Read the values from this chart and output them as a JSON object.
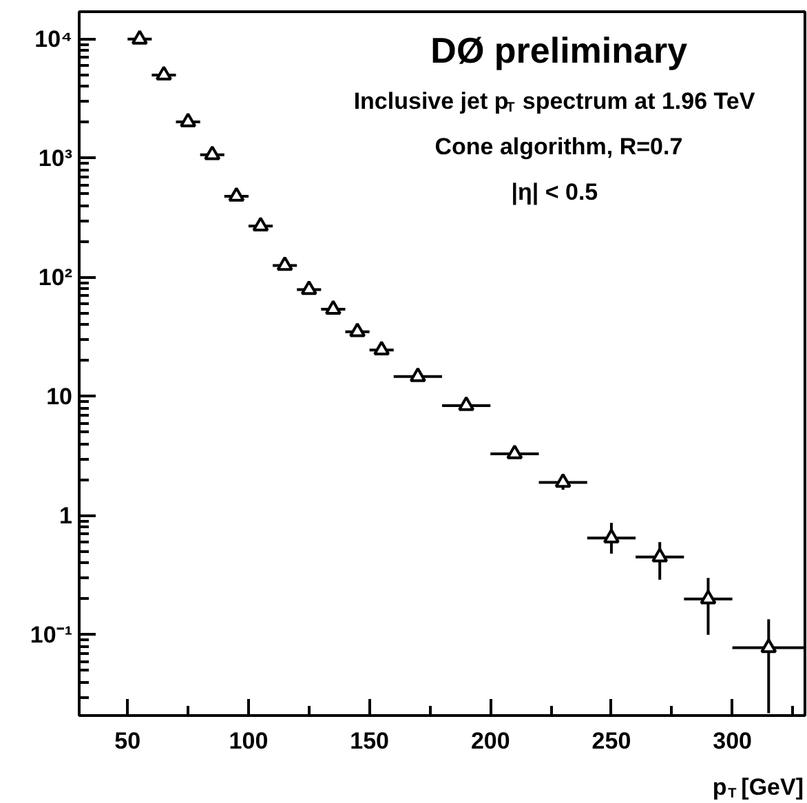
{
  "chart_data": {
    "type": "scatter",
    "title": "DØ preliminary",
    "annotations": [
      "Inclusive jet p$_{T}$ spectrum at 1.96 TeV",
      "Cone algorithm, R=0.7",
      "|η| < 0.5"
    ],
    "xlabel": "p$_{T}$ [GeV]",
    "x": [
      55,
      65,
      75,
      85,
      95,
      105,
      115,
      125,
      135,
      145,
      155,
      170,
      190,
      210,
      230,
      250,
      270,
      290,
      315
    ],
    "series": [
      {
        "color": "#000000",
        "values": [
          10000,
          5000,
          2020,
          1070,
          480,
          270,
          126,
          79,
          54,
          35,
          24.6,
          14.7,
          8.4,
          3.3,
          1.9,
          0.65,
          0.45,
          0.2,
          0.078
        ],
        "errors": [
          null,
          null,
          null,
          null,
          null,
          null,
          null,
          null,
          null,
          null,
          null,
          null,
          null,
          null,
          [
            1.65,
            2.2
          ],
          [
            0.48,
            0.87
          ],
          [
            0.29,
            0.6
          ],
          [
            0.1,
            0.3
          ],
          [
            0.022,
            0.135
          ]
        ],
        "xerrors": [
          5,
          5,
          5,
          5,
          5,
          5,
          5,
          5,
          5,
          5,
          5,
          10,
          10,
          10,
          10,
          10,
          10,
          10,
          15
        ]
      }
    ],
    "xlim": [
      30,
      330
    ],
    "ylim": [
      0.021,
      17000
    ],
    "log": "y",
    "xticks": [
      50,
      100,
      150,
      200,
      250,
      300
    ],
    "yticks": [
      {
        "value": 0.1,
        "label": "10⁻¹"
      },
      1,
      10,
      {
        "value": 100,
        "label": "10²"
      },
      {
        "value": 1000,
        "label": "10³"
      },
      {
        "value": 10000,
        "label": "10⁴"
      }
    ],
    "marker": "triangle",
    "grid": false,
    "legend": false
  }
}
